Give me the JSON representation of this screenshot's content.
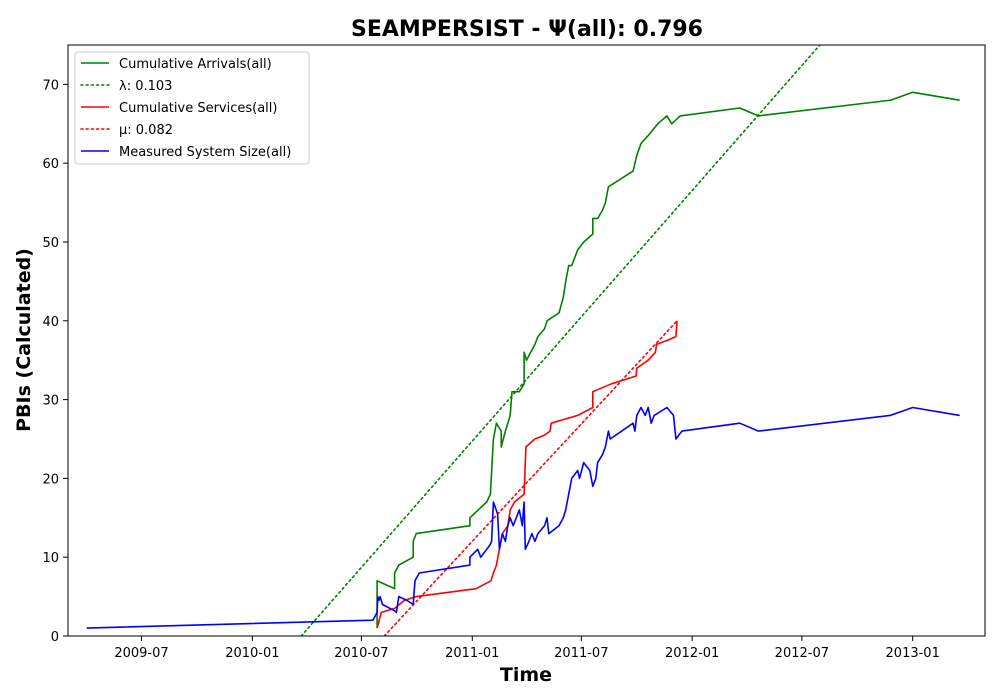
{
  "chart_data": {
    "type": "line",
    "title": "SEAMPERSIST -  Ψ(all): 0.796",
    "xlabel": "Time",
    "ylabel": "PBIs (Calculated)",
    "x_is_date": true,
    "xlim": [
      "2009-03-01",
      "2013-05-01"
    ],
    "ylim": [
      0,
      75
    ],
    "x_ticks": [
      "2009-07",
      "2010-01",
      "2010-07",
      "2011-01",
      "2011-07",
      "2012-01",
      "2012-07",
      "2013-01"
    ],
    "y_ticks": [
      0,
      10,
      20,
      30,
      40,
      50,
      60,
      70
    ],
    "grid": false,
    "legend_position": "upper-left",
    "series": [
      {
        "name": "Cumulative Arrivals(all)",
        "color": "#008000",
        "style": "solid",
        "points": [
          [
            "2010-07-27",
            1
          ],
          [
            "2010-07-27",
            7
          ],
          [
            "2010-08-25",
            6
          ],
          [
            "2010-08-25",
            8
          ],
          [
            "2010-09-01",
            9
          ],
          [
            "2010-09-25",
            10
          ],
          [
            "2010-09-25",
            12
          ],
          [
            "2010-09-30",
            13
          ],
          [
            "2010-12-28",
            14
          ],
          [
            "2010-12-28",
            15
          ],
          [
            "2011-01-25",
            17
          ],
          [
            "2011-01-31",
            18
          ],
          [
            "2011-02-05",
            25
          ],
          [
            "2011-02-10",
            27
          ],
          [
            "2011-02-18",
            26
          ],
          [
            "2011-02-18",
            24
          ],
          [
            "2011-02-25",
            26
          ],
          [
            "2011-03-05",
            28
          ],
          [
            "2011-03-08",
            31
          ],
          [
            "2011-03-20",
            31
          ],
          [
            "2011-03-28",
            32
          ],
          [
            "2011-03-28",
            36
          ],
          [
            "2011-04-01",
            35
          ],
          [
            "2011-04-08",
            36
          ],
          [
            "2011-04-15",
            37
          ],
          [
            "2011-04-20",
            38
          ],
          [
            "2011-05-01",
            39
          ],
          [
            "2011-05-05",
            40
          ],
          [
            "2011-05-25",
            41
          ],
          [
            "2011-06-01",
            43
          ],
          [
            "2011-06-05",
            45
          ],
          [
            "2011-06-10",
            47
          ],
          [
            "2011-06-15",
            47
          ],
          [
            "2011-06-25",
            49
          ],
          [
            "2011-07-05",
            50
          ],
          [
            "2011-07-20",
            51
          ],
          [
            "2011-07-20",
            53
          ],
          [
            "2011-07-28",
            53
          ],
          [
            "2011-08-05",
            54
          ],
          [
            "2011-08-10",
            55
          ],
          [
            "2011-08-15",
            57
          ],
          [
            "2011-09-25",
            59
          ],
          [
            "2011-10-01",
            61
          ],
          [
            "2011-10-08",
            62.5
          ],
          [
            "2011-10-20",
            63.5
          ],
          [
            "2011-11-05",
            65
          ],
          [
            "2011-11-20",
            66
          ],
          [
            "2011-11-28",
            65
          ],
          [
            "2011-12-12",
            66
          ],
          [
            "2012-03-20",
            67
          ],
          [
            "2012-04-20",
            66
          ],
          [
            "2012-11-25",
            68
          ],
          [
            "2013-01-01",
            69
          ],
          [
            "2013-03-20",
            68
          ]
        ]
      },
      {
        "name": "λ: 0.103",
        "color": "#008000",
        "style": "dotted",
        "points": [
          [
            "2010-03-23",
            0
          ],
          [
            "2012-07-31",
            75
          ]
        ]
      },
      {
        "name": "Cumulative Services(all)",
        "color": "#ff0000",
        "style": "solid",
        "points": [
          [
            "2010-07-27",
            1
          ],
          [
            "2010-08-03",
            3
          ],
          [
            "2010-08-25",
            3.5
          ],
          [
            "2010-09-10",
            4.5
          ],
          [
            "2010-09-30",
            5
          ],
          [
            "2011-01-07",
            6
          ],
          [
            "2011-02-01",
            7
          ],
          [
            "2011-02-05",
            8
          ],
          [
            "2011-02-10",
            9
          ],
          [
            "2011-02-15",
            11
          ],
          [
            "2011-02-20",
            13
          ],
          [
            "2011-03-01",
            14
          ],
          [
            "2011-03-05",
            16
          ],
          [
            "2011-03-12",
            17
          ],
          [
            "2011-03-28",
            18
          ],
          [
            "2011-03-31",
            24
          ],
          [
            "2011-04-15",
            25
          ],
          [
            "2011-05-01",
            25.5
          ],
          [
            "2011-05-10",
            26
          ],
          [
            "2011-05-12",
            27
          ],
          [
            "2011-06-25",
            28
          ],
          [
            "2011-07-20",
            29
          ],
          [
            "2011-07-20",
            31
          ],
          [
            "2011-08-20",
            32
          ],
          [
            "2011-09-30",
            33
          ],
          [
            "2011-10-01",
            34
          ],
          [
            "2011-10-20",
            35
          ],
          [
            "2011-11-01",
            36
          ],
          [
            "2011-11-03",
            37
          ],
          [
            "2011-11-20",
            37.5
          ],
          [
            "2011-12-05",
            38
          ],
          [
            "2011-12-07",
            40
          ]
        ]
      },
      {
        "name": "μ: 0.082",
        "color": "#ff0000",
        "style": "dotted",
        "points": [
          [
            "2010-08-08",
            0
          ],
          [
            "2011-12-07",
            40
          ]
        ]
      },
      {
        "name": "Measured System Size(all)",
        "color": "#0000ff",
        "style": "solid",
        "points": [
          [
            "2009-04-01",
            1
          ],
          [
            "2010-07-20",
            2
          ],
          [
            "2010-07-27",
            3
          ],
          [
            "2010-07-28",
            5
          ],
          [
            "2010-07-30",
            4.5
          ],
          [
            "2010-08-01",
            5
          ],
          [
            "2010-08-05",
            4
          ],
          [
            "2010-08-25",
            3.2
          ],
          [
            "2010-08-28",
            3
          ],
          [
            "2010-09-01",
            5
          ],
          [
            "2010-09-15",
            4.5
          ],
          [
            "2010-09-25",
            4
          ],
          [
            "2010-09-28",
            7
          ],
          [
            "2010-10-05",
            8
          ],
          [
            "2010-12-28",
            9
          ],
          [
            "2010-12-28",
            10
          ],
          [
            "2011-01-10",
            11
          ],
          [
            "2011-01-15",
            10
          ],
          [
            "2011-01-30",
            11.5
          ],
          [
            "2011-02-02",
            12
          ],
          [
            "2011-02-05",
            17
          ],
          [
            "2011-02-12",
            15.5
          ],
          [
            "2011-02-15",
            11
          ],
          [
            "2011-02-20",
            13
          ],
          [
            "2011-02-25",
            12
          ],
          [
            "2011-03-01",
            14
          ],
          [
            "2011-03-05",
            15
          ],
          [
            "2011-03-10",
            14
          ],
          [
            "2011-03-20",
            16
          ],
          [
            "2011-03-25",
            14
          ],
          [
            "2011-03-28",
            17
          ],
          [
            "2011-03-30",
            11
          ],
          [
            "2011-04-05",
            12
          ],
          [
            "2011-04-10",
            13
          ],
          [
            "2011-04-15",
            12
          ],
          [
            "2011-04-20",
            13
          ],
          [
            "2011-05-01",
            14
          ],
          [
            "2011-05-05",
            15
          ],
          [
            "2011-05-08",
            13
          ],
          [
            "2011-05-25",
            14
          ],
          [
            "2011-06-01",
            15
          ],
          [
            "2011-06-05",
            16
          ],
          [
            "2011-06-10",
            18
          ],
          [
            "2011-06-15",
            20
          ],
          [
            "2011-06-25",
            21
          ],
          [
            "2011-06-28",
            20
          ],
          [
            "2011-07-05",
            22
          ],
          [
            "2011-07-15",
            21
          ],
          [
            "2011-07-20",
            19
          ],
          [
            "2011-07-25",
            20
          ],
          [
            "2011-07-28",
            22
          ],
          [
            "2011-08-05",
            23
          ],
          [
            "2011-08-10",
            24
          ],
          [
            "2011-08-15",
            26
          ],
          [
            "2011-08-18",
            25
          ],
          [
            "2011-09-25",
            27
          ],
          [
            "2011-09-28",
            26
          ],
          [
            "2011-10-01",
            28
          ],
          [
            "2011-10-08",
            29
          ],
          [
            "2011-10-15",
            28
          ],
          [
            "2011-10-20",
            29
          ],
          [
            "2011-10-25",
            27
          ],
          [
            "2011-10-30",
            28
          ],
          [
            "2011-11-20",
            29
          ],
          [
            "2011-12-01",
            28
          ],
          [
            "2011-12-05",
            25
          ],
          [
            "2011-12-15",
            26
          ],
          [
            "2012-03-20",
            27
          ],
          [
            "2012-04-20",
            26
          ],
          [
            "2012-11-25",
            28
          ],
          [
            "2013-01-01",
            29
          ],
          [
            "2013-03-20",
            28
          ]
        ]
      }
    ]
  }
}
